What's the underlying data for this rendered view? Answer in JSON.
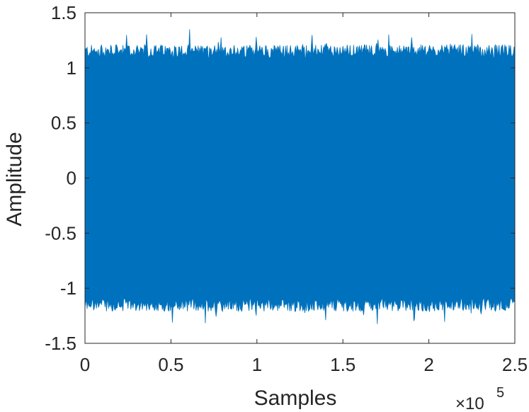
{
  "chart_data": {
    "type": "line",
    "title": "",
    "xlabel": "Samples",
    "ylabel": "Amplitude",
    "xlim": [
      0,
      2.5
    ],
    "ylim": [
      -1.5,
      1.5
    ],
    "x_multiplier_label": "×10",
    "x_multiplier_exponent": "5",
    "xticks": [
      0,
      0.5,
      1,
      1.5,
      2,
      2.5
    ],
    "xtick_labels": [
      "0",
      "0.5",
      "1",
      "1.5",
      "2",
      "2.5"
    ],
    "yticks": [
      -1.5,
      -1,
      -0.5,
      0,
      0.5,
      1,
      1.5
    ],
    "ytick_labels": [
      "-1.5",
      "-1",
      "-0.5",
      "0",
      "0.5",
      "1",
      "1.5"
    ],
    "grid": false,
    "legend": "none",
    "series": [
      {
        "color": "#0072BD",
        "description_values": {
          "x_start": 0,
          "x_end": 2.5,
          "typical_peak_max": 1.15,
          "typical_peak_min": -1.15,
          "max_extreme": 1.3,
          "min_extreme": -1.32
        }
      }
    ]
  }
}
